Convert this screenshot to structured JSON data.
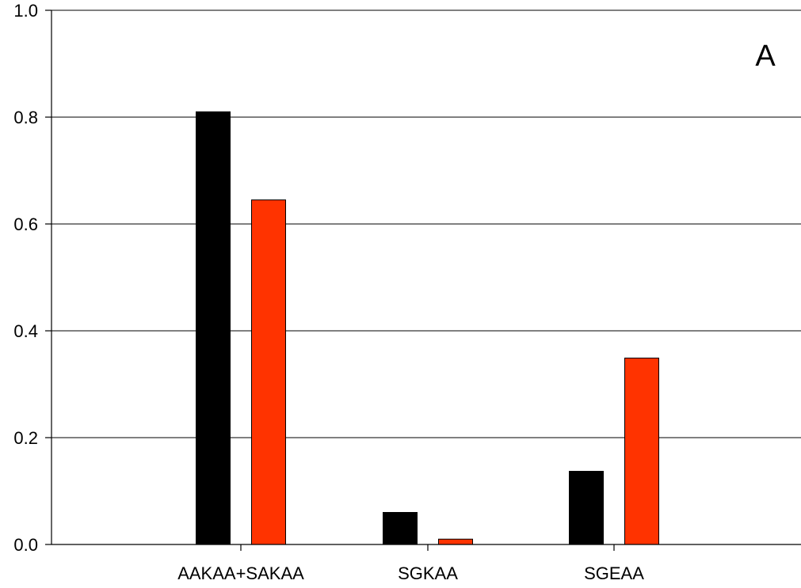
{
  "chart_data": {
    "type": "bar",
    "title": "",
    "xlabel": "",
    "ylabel": "",
    "panel_label": "A",
    "categories": [
      "AAKAA+SAKAA",
      "SGKAA",
      "SGEAA"
    ],
    "series": [
      {
        "color": "#000000",
        "values": [
          0.81,
          0.06,
          0.137
        ]
      },
      {
        "color": "#ff3300",
        "values": [
          0.645,
          0.01,
          0.349
        ]
      }
    ],
    "ylim": [
      0.0,
      1.0
    ],
    "yticks": [
      "0.0",
      "0.2",
      "0.4",
      "0.6",
      "0.8",
      "1.0"
    ],
    "grid": true,
    "legend": "none"
  }
}
